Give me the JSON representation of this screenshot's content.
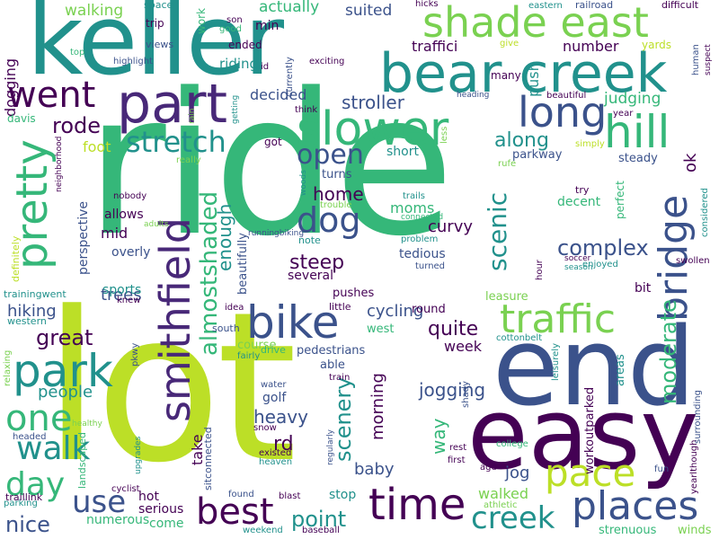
{
  "words": {
    "ride": "ride",
    "lot": "lot",
    "keller": "keller",
    "end": "end",
    "easy": "easy",
    "bear_creek": "bear creek",
    "part": "part",
    "shade_east": "shade east",
    "slower": "slower",
    "long": "long",
    "hill": "hill",
    "went": "went",
    "bike": "bike",
    "pretty": "pretty",
    "park": "park",
    "smithfield": "smithfield",
    "time": "time",
    "places": "places",
    "traffic": "traffic",
    "bridge": "bridge",
    "pace": "pace",
    "creek": "creek",
    "best": "best",
    "one": "one",
    "walk": "walk",
    "day": "day",
    "use": "use",
    "stretch": "stretch",
    "dog": "dog",
    "open": "open",
    "scenic": "scenic",
    "almostshaded": "almostshaded",
    "moderate": "moderate",
    "complex": "complex",
    "scenery": "scenery",
    "home": "home",
    "steep": "steep",
    "quite": "quite",
    "along": "along",
    "enough": "enough",
    "stroller": "stroller",
    "rode": "rode",
    "great": "great",
    "nice": "nice",
    "point": "point",
    "rd": "rd",
    "heavy": "heavy",
    "way": "way",
    "jogging": "jogging",
    "week": "week",
    "baby": "baby",
    "morning": "morning",
    "cycling": "cycling",
    "hiking": "hiking",
    "people": "people",
    "trees": "trees",
    "walking": "walking",
    "actually": "actually",
    "suited": "suited",
    "decided": "decided",
    "riding": "riding",
    "foot": "foot",
    "judging": "judging",
    "number": "number",
    "traffici": "traffici",
    "push": "push",
    "dogging": "dogging",
    "ok": "ok",
    "curvy": "curvy",
    "moms": "moms",
    "mid": "mid",
    "allows": "allows",
    "perspective": "perspective",
    "sports": "sports",
    "overly": "overly",
    "several": "several",
    "pushes": "pushes",
    "beautifully": "beautifully",
    "jog": "jog",
    "walked": "walked",
    "stop": "stop",
    "serious": "serious",
    "numerous": "numerous",
    "come": "come",
    "hot": "hot",
    "take": "take",
    "golf": "golf",
    "workoutparked": "workoutparked",
    "areas": "areas",
    "decent": "decent",
    "short": "short",
    "turns": "turns",
    "parkway": "parkway",
    "steady": "steady",
    "perfect": "perfect",
    "tedious": "tedious",
    "leasure": "leasure",
    "bit": "bit",
    "pedestrians": "pedestrians",
    "able": "able",
    "course": "course",
    "drive": "drive",
    "west": "west",
    "round": "round",
    "little": "little",
    "idea": "idea",
    "south": "south",
    "western": "western",
    "knew": "knew",
    "trainingwent": "trainingwent",
    "definitely": "definitely",
    "landscaped": "landscaped",
    "sitconnected": "sitconnected",
    "upgrades": "upgrades",
    "cyclist": "cyclist",
    "healthy": "healthy",
    "relaxing": "relaxing",
    "headed": "headed",
    "traillink": "traillink",
    "parking": "parking",
    "weekend": "weekend",
    "found": "found",
    "blast": "blast",
    "baseball": "baseball",
    "heaven": "heaven",
    "existed": "existed",
    "snow": "snow",
    "water": "water",
    "train": "train",
    "fairly": "fairly",
    "pkwy": "pkwy",
    "regularly": "regularly",
    "shady": "shady",
    "first": "first",
    "rest": "rest",
    "age": "age",
    "college": "college",
    "athletic": "athletic",
    "fun": "fun",
    "strenuous": "strenuous",
    "winds": "winds",
    "yearlthough": "yearlthough",
    "surrounding": "surrounding",
    "leisurely": "leisurely",
    "cottonbelt": "cottonbelt",
    "swollen": "swollen",
    "considered": "considered",
    "hour": "hour",
    "season": "season",
    "enjoyed": "enjoyed",
    "soccer": "soccer",
    "turned": "turned",
    "problem": "problem",
    "connected": "connected",
    "trails": "trails",
    "trouble": "trouble",
    "try": "try",
    "rufe": "rufe",
    "runningbiking": "runningbiking",
    "note": "note",
    "adults": "adults",
    "nobody": "nobody",
    "neighborhood": "neighborhood",
    "woods": "woods",
    "really": "really",
    "davis": "davis",
    "got": "got",
    "think": "think",
    "rain": "rain",
    "getting": "getting",
    "less": "less",
    "simply": "simply",
    "year": "year",
    "heading": "heading",
    "beautiful": "beautiful",
    "many": "many",
    "yards": "yards",
    "give": "give",
    "human": "human",
    "suspect": "suspect",
    "difficult": "difficult",
    "eastern": "eastern",
    "railroad": "railroad",
    "hicks": "hicks",
    "exciting": "exciting",
    "currently": "currently",
    "id": "id",
    "min": "min",
    "work": "work",
    "son": "son",
    "good": "good",
    "ended": "ended",
    "trip": "trip",
    "space": "space",
    "views": "views",
    "highlight": "highlight",
    "top": "top"
  },
  "colors": {
    "lime": "#bcdf27",
    "green": "#35b779",
    "teal": "#21918c",
    "blue": "#3b528b",
    "purple": "#440154",
    "lightgreen": "#7ad151",
    "darkpurple": "#482878"
  }
}
